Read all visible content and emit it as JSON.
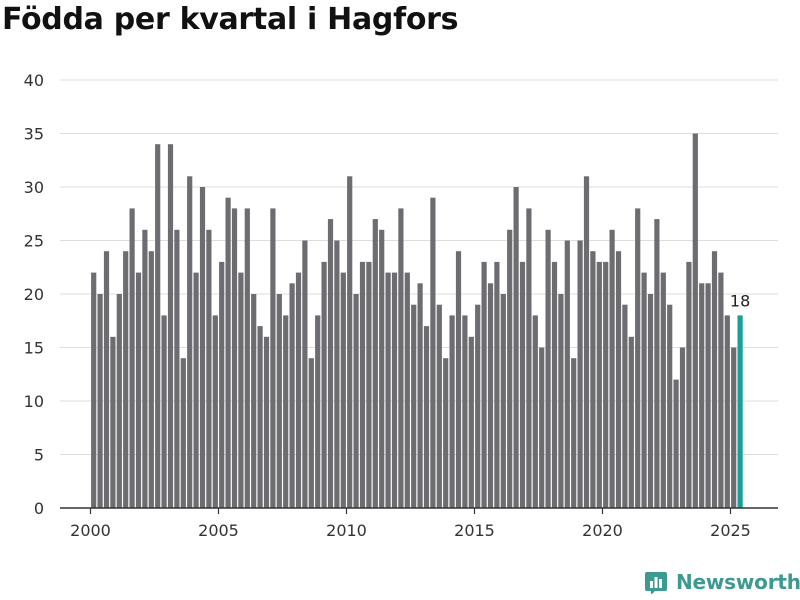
{
  "title": "Födda per kvartal i Hagfors",
  "brand": {
    "name": "Newsworthy",
    "icon": "newsworthy-logo-icon",
    "color": "#3d9a91"
  },
  "colors": {
    "bar": "#6d6c71",
    "highlight": "#1a9e97",
    "grid": "#dddddd",
    "axis": "#333333"
  },
  "chart_data": {
    "type": "bar",
    "title": "Födda per kvartal i Hagfors",
    "xlabel": "",
    "ylabel": "",
    "ylim": [
      0,
      40
    ],
    "yticks": [
      0,
      5,
      10,
      15,
      20,
      25,
      30,
      35,
      40
    ],
    "xticks": [
      "2000",
      "2005",
      "2010",
      "2015",
      "2020",
      "2025"
    ],
    "xlim": [
      1999.875,
      2026.125
    ],
    "grid": true,
    "start_year": 2000,
    "categories": [
      "2000 K1",
      "2000 K2",
      "2000 K3",
      "2000 K4",
      "2001 K1",
      "2001 K2",
      "2001 K3",
      "2001 K4",
      "2002 K1",
      "2002 K2",
      "2002 K3",
      "2002 K4",
      "2003 K1",
      "2003 K2",
      "2003 K3",
      "2003 K4",
      "2004 K1",
      "2004 K2",
      "2004 K3",
      "2004 K4",
      "2005 K1",
      "2005 K2",
      "2005 K3",
      "2005 K4",
      "2006 K1",
      "2006 K2",
      "2006 K3",
      "2006 K4",
      "2007 K1",
      "2007 K2",
      "2007 K3",
      "2007 K4",
      "2008 K1",
      "2008 K2",
      "2008 K3",
      "2008 K4",
      "2009 K1",
      "2009 K2",
      "2009 K3",
      "2009 K4",
      "2010 K1",
      "2010 K2",
      "2010 K3",
      "2010 K4",
      "2011 K1",
      "2011 K2",
      "2011 K3",
      "2011 K4",
      "2012 K1",
      "2012 K2",
      "2012 K3",
      "2012 K4",
      "2013 K1",
      "2013 K2",
      "2013 K3",
      "2013 K4",
      "2014 K1",
      "2014 K2",
      "2014 K3",
      "2014 K4",
      "2015 K1",
      "2015 K2",
      "2015 K3",
      "2015 K4",
      "2016 K1",
      "2016 K2",
      "2016 K3",
      "2016 K4",
      "2017 K1",
      "2017 K2",
      "2017 K3",
      "2017 K4",
      "2018 K1",
      "2018 K2",
      "2018 K3",
      "2018 K4",
      "2019 K1",
      "2019 K2",
      "2019 K3",
      "2019 K4",
      "2020 K1",
      "2020 K2",
      "2020 K3",
      "2020 K4",
      "2021 K1",
      "2021 K2",
      "2021 K3",
      "2021 K4",
      "2022 K1",
      "2022 K2",
      "2022 K3",
      "2022 K4",
      "2023 K1",
      "2023 K2",
      "2023 K3",
      "2023 K4",
      "2024 K1",
      "2024 K2",
      "2024 K3",
      "2024 K4",
      "2025 K1",
      "2025 K2"
    ],
    "values": [
      22,
      20,
      24,
      16,
      20,
      24,
      28,
      22,
      26,
      24,
      34,
      18,
      34,
      26,
      14,
      31,
      22,
      30,
      26,
      18,
      23,
      29,
      28,
      22,
      28,
      20,
      17,
      16,
      28,
      20,
      18,
      21,
      22,
      25,
      14,
      18,
      23,
      27,
      25,
      22,
      31,
      20,
      23,
      23,
      27,
      26,
      22,
      22,
      28,
      22,
      19,
      21,
      17,
      29,
      19,
      14,
      18,
      24,
      18,
      16,
      19,
      23,
      21,
      23,
      20,
      26,
      30,
      23,
      28,
      18,
      15,
      26,
      23,
      20,
      25,
      14,
      25,
      31,
      24,
      23,
      23,
      26,
      24,
      19,
      16,
      28,
      22,
      20,
      27,
      22,
      19,
      12,
      15,
      23,
      35,
      21,
      21,
      24,
      22,
      18,
      15,
      18
    ],
    "highlight": {
      "index": 101,
      "label": "18"
    }
  }
}
